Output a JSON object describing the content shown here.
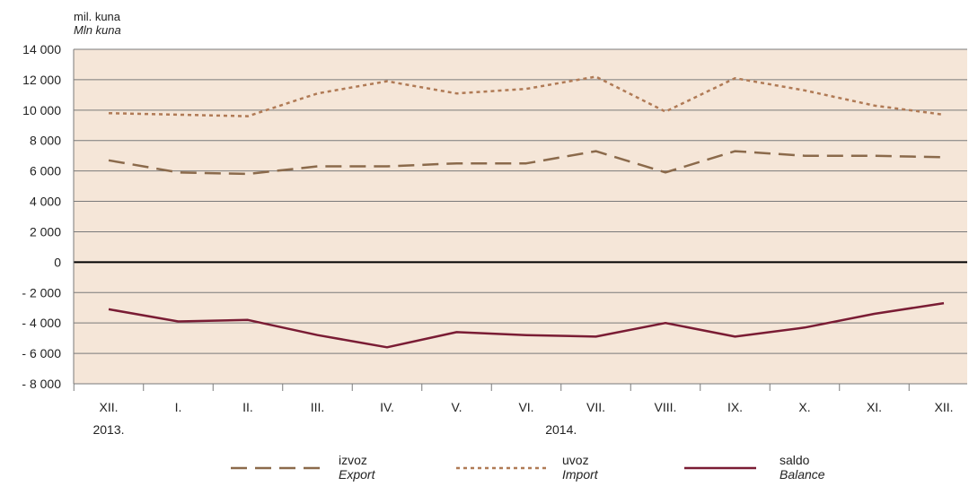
{
  "chart_data": {
    "type": "line",
    "unit_label": "mil. kuna",
    "unit_label_en": "Mln kuna",
    "ylim": [
      -8000,
      14000
    ],
    "y_ticks": [
      "14 000",
      "12 000",
      "10 000",
      "8 000",
      "6 000",
      "4 000",
      "2 000",
      "0",
      "- 2 000",
      "- 4 000",
      "- 6 000",
      "- 8 000"
    ],
    "y_tick_values": [
      14000,
      12000,
      10000,
      8000,
      6000,
      4000,
      2000,
      0,
      -2000,
      -4000,
      -6000,
      -8000
    ],
    "categories": [
      "XII.",
      "I.",
      "II.",
      "III.",
      "IV.",
      "V.",
      "VI.",
      "VII.",
      "VIII.",
      "IX.",
      "X.",
      "XI.",
      "XII."
    ],
    "year_labels": [
      {
        "label": "2013.",
        "category_index": 0
      },
      {
        "label": "2014.",
        "category_index": 6.5
      }
    ],
    "grid": true,
    "background_color": "#f5e6d8",
    "series": [
      {
        "name": "izvoz",
        "name_en": "Export",
        "style": "dashed",
        "color": "#8b6a4b",
        "values": [
          6700,
          5900,
          5800,
          6300,
          6300,
          6500,
          6500,
          7300,
          5900,
          7300,
          7000,
          7000,
          6900
        ]
      },
      {
        "name": "uvoz",
        "name_en": "Import",
        "style": "dotted",
        "color": "#b07a55",
        "values": [
          9800,
          9700,
          9600,
          11100,
          11900,
          11100,
          11400,
          12200,
          9900,
          12100,
          11300,
          10300,
          9700
        ]
      },
      {
        "name": "saldo",
        "name_en": "Balance",
        "style": "solid",
        "color": "#7a1c34",
        "values": [
          -3100,
          -3900,
          -3800,
          -4800,
          -5600,
          -4600,
          -4800,
          -4900,
          -4000,
          -4900,
          -4300,
          -3400,
          -2700
        ]
      }
    ],
    "legend_position": "bottom"
  }
}
